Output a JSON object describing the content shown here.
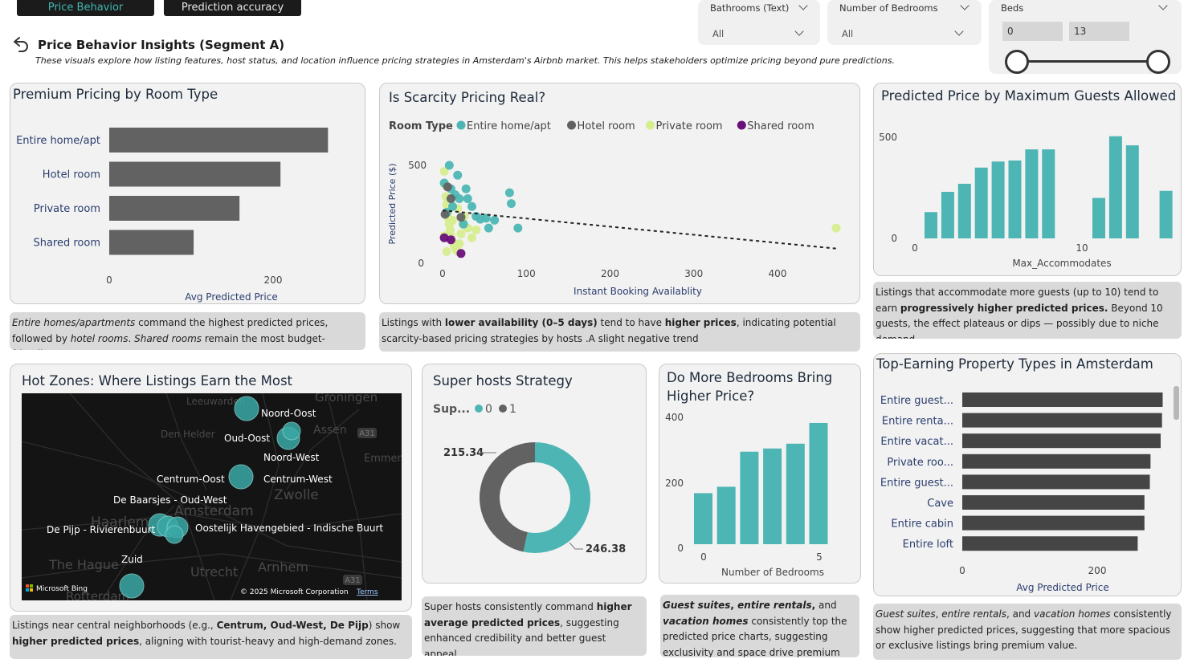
{
  "tabs": [
    {
      "label": "Price Behavior",
      "active": true
    },
    {
      "label": "Prediction accuracy",
      "active": false
    }
  ],
  "header": {
    "title": "Price Behavior Insights (Segment A)",
    "subtitle": "These visuals explore how listing features, host status, and location influence pricing strategies in Amsterdam's Airbnb market. This helps stakeholders optimize pricing beyond pure predictions.",
    "back_icon": "back-arrow-icon"
  },
  "slicers": {
    "bathrooms": {
      "label": "Bathrooms (Text)",
      "value": "All"
    },
    "bedrooms": {
      "label": "Number of Bedrooms",
      "value": "All"
    },
    "beds": {
      "label": "Beds",
      "min": "0",
      "max": "13",
      "range_fraction": [
        0,
        1
      ]
    }
  },
  "colors": {
    "teal": "#4db6b4",
    "gray": "#626262",
    "lime": "#d6ed8e",
    "purple": "#6a0f7c",
    "dark": "#454545"
  },
  "cards": {
    "room_type": {
      "title": "Premium Pricing by Room Type",
      "note_html": "<i>Entire homes/apartments</i> command the highest predicted prices, followed by <i>hotel rooms</i>. <i>Shared rooms</i> remain the most budget-friendly."
    },
    "scarcity": {
      "title": "Is Scarcity Pricing Real?",
      "legend_title": "Room Type",
      "note_html": "Listings with <b>lower availability (0–5 days)</b> tend to have <b>higher prices</b>, indicating potential scarcity-based pricing strategies by hosts .A slight negative trend"
    },
    "guests": {
      "title": "Predicted Price by Maximum Guests Allowed",
      "note_html": "Listings that accommodate more guests (up to 10) tend to earn <b>progressively higher predicted prices.</b> Beyond 10 guests, the effect plateaus or dips — possibly due to niche demand."
    },
    "hotzones": {
      "title": "Hot Zones: Where Listings Earn the Most",
      "note_html": "Listings near central neighborhoods (e.g., <b>Centrum, Oud-West, De Pijp</b>) show <b>higher predicted prices</b>, aligning with tourist-heavy and high-demand zones.",
      "map_labels": [
        "Noord-Oost",
        "Oud-Oost",
        "Noord-West",
        "Centrum-Oost",
        "Centrum-West",
        "De Baarsjes - Oud-West",
        "De Pijp - Rivierenbuurt",
        "Oostelijk Havengebied - Indische Buurt",
        "Zuid"
      ],
      "bg_labels": [
        "Leeuwarden",
        "Groningen",
        "Den Helder",
        "Assen",
        "Emmen",
        "Zwolle",
        "Haarlem",
        "Amsterdam",
        "The Hague",
        "Utrecht",
        "Arnhem",
        "Rotterdam"
      ],
      "road_badges": [
        "A31",
        "A31"
      ],
      "bing_label": "Microsoft Bing",
      "copyright": "© 2025 Microsoft Corporation",
      "terms": "Terms"
    },
    "superhost": {
      "title": "Super hosts Strategy",
      "legend_title": "Sup...",
      "legend": [
        "0",
        "1"
      ],
      "note_html": "Super hosts consistently command <b>higher average predicted prices</b>, suggesting enhanced credibility and better guest appeal."
    },
    "bedrooms": {
      "title_lines": [
        "Do More Bedrooms Bring",
        "Higher Price?"
      ],
      "note_html": "<b><i>Guest suites</i>, <i>entire rentals</i>,</b> and <b><i>vacation homes</i></b> consistently top the predicted price charts, suggesting exclusivity and space drive premium value."
    },
    "property": {
      "title": "Top-Earning Property Types in Amsterdam",
      "note_html": "<i>Guest suites</i>, <i>entire rentals</i>, and <i>vacation homes</i> consistently show higher predicted prices, suggesting that more spacious or exclusive listings bring premium value."
    }
  },
  "chart_data": [
    {
      "type": "bar",
      "orientation": "horizontal",
      "title": "Premium Pricing by Room Type",
      "categories": [
        "Entire home/apt",
        "Hotel room",
        "Private room",
        "Shared room"
      ],
      "values": [
        267,
        209,
        159,
        103
      ],
      "xlabel": "Avg Predicted Price",
      "xticks": [
        "0",
        "200"
      ],
      "xlim": [
        0,
        340
      ]
    },
    {
      "type": "scatter",
      "title": "Is Scarcity Pricing Real?",
      "xlabel": "Instant Booking Availablity",
      "ylabel": "Predicted Price ($)",
      "xlim": [
        -10,
        480
      ],
      "ylim": [
        0,
        580
      ],
      "xticks": [
        "0",
        "100",
        "200",
        "300",
        "400"
      ],
      "yticks": [
        "0",
        "500"
      ],
      "legend": [
        "Entire home/apt",
        "Hotel room",
        "Private room",
        "Shared room"
      ],
      "trendline": [
        [
          0,
          270
        ],
        [
          470,
          75
        ]
      ],
      "series": [
        {
          "name": "Entire home/apt",
          "points": [
            [
              2,
              410
            ],
            [
              8,
              500
            ],
            [
              12,
              290
            ],
            [
              18,
              450
            ],
            [
              20,
              330
            ],
            [
              5,
              260
            ],
            [
              28,
              380
            ],
            [
              35,
              290
            ],
            [
              45,
              225
            ],
            [
              52,
              230
            ],
            [
              62,
              220
            ],
            [
              80,
              360
            ],
            [
              82,
              305
            ],
            [
              90,
              180
            ],
            [
              55,
              180
            ],
            [
              25,
              200
            ],
            [
              15,
              350
            ],
            [
              10,
              380
            ],
            [
              30,
              330
            ],
            [
              40,
              240
            ]
          ]
        },
        {
          "name": "Hotel room",
          "points": [
            [
              3,
              250
            ],
            [
              22,
              235
            ],
            [
              10,
              330
            ],
            [
              6,
              390
            ]
          ]
        },
        {
          "name": "Private room",
          "points": [
            [
              2,
              470
            ],
            [
              3,
              400
            ],
            [
              4,
              340
            ],
            [
              5,
              300
            ],
            [
              6,
              260
            ],
            [
              7,
              230
            ],
            [
              8,
              200
            ],
            [
              9,
              170
            ],
            [
              10,
              140
            ],
            [
              12,
              110
            ],
            [
              14,
              90
            ],
            [
              16,
              70
            ],
            [
              18,
              60
            ],
            [
              20,
              100
            ],
            [
              22,
              150
            ],
            [
              24,
              200
            ],
            [
              26,
              240
            ],
            [
              5,
              60
            ],
            [
              12,
              220
            ],
            [
              18,
              280
            ],
            [
              30,
              180
            ],
            [
              35,
              130
            ],
            [
              40,
              170
            ],
            [
              2,
              140
            ],
            [
              470,
              180
            ]
          ]
        },
        {
          "name": "Shared room",
          "points": [
            [
              2,
              130
            ],
            [
              10,
              120
            ],
            [
              22,
              50
            ]
          ]
        }
      ]
    },
    {
      "type": "bar",
      "title": "Predicted Price by Maximum Guests Allowed",
      "categories": [
        1,
        2,
        3,
        4,
        5,
        6,
        7,
        8,
        9,
        10,
        11,
        12,
        13,
        14,
        15,
        16
      ],
      "values": [
        130,
        230,
        270,
        350,
        380,
        385,
        440,
        440,
        0,
        0,
        200,
        505,
        460,
        0,
        235,
        0
      ],
      "xlabel": "Max_Accommodates",
      "xticks": [
        "0",
        "10"
      ],
      "yticks": [
        "0",
        "500"
      ],
      "ylim": [
        0,
        580
      ]
    },
    {
      "type": "pie",
      "title": "Super hosts Strategy",
      "categories": [
        "0",
        "1"
      ],
      "values": [
        215.34,
        246.38
      ],
      "donut": true
    },
    {
      "type": "bar",
      "title": "Do More Bedrooms Bring Higher Price?",
      "categories": [
        0,
        1,
        2,
        3,
        4,
        5
      ],
      "values": [
        160,
        180,
        290,
        300,
        315,
        380
      ],
      "xlabel": "Number of Bedrooms",
      "xticks": [
        "0",
        "5"
      ],
      "yticks": [
        "0",
        "200",
        "400"
      ],
      "ylim": [
        0,
        440
      ]
    },
    {
      "type": "bar",
      "orientation": "horizontal",
      "title": "Top-Earning Property Types in Amsterdam",
      "categories": [
        "Entire guest...",
        "Entire renta...",
        "Entire vacat...",
        "Private roo...",
        "Entire guest...",
        "Cave",
        "Entire cabin",
        "Entire loft"
      ],
      "values": [
        297,
        296,
        294,
        279,
        278,
        270,
        270,
        260
      ],
      "xlabel": "Avg Predicted Price",
      "xticks": [
        "0",
        "200"
      ],
      "xlim": [
        0,
        320
      ]
    }
  ]
}
